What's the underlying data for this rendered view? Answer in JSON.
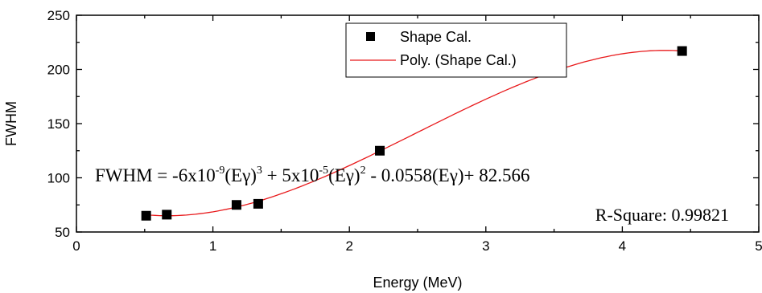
{
  "chart_data": {
    "type": "scatter",
    "xlabel": "Energy (MeV)",
    "ylabel": "FWHM",
    "xlim": [
      0,
      5
    ],
    "ylim": [
      50,
      250
    ],
    "x_ticks": [
      "0",
      "1",
      "2",
      "3",
      "4",
      "5"
    ],
    "y_ticks": [
      "50",
      "100",
      "150",
      "200",
      "250"
    ],
    "grid": false,
    "legend_position": "top-center",
    "series": [
      {
        "name": "Shape Cal.",
        "kind": "points",
        "marker": "square",
        "color": "#000000",
        "x": [
          0.511,
          0.662,
          1.173,
          1.332,
          2.223,
          4.438
        ],
        "y": [
          65,
          66,
          75,
          76,
          125,
          217
        ]
      },
      {
        "name": "Poly. (Shape Cal.)",
        "kind": "fit",
        "color": "#e8191b",
        "x_range": [
          0.511,
          4.438
        ]
      }
    ],
    "annotations": {
      "equation": {
        "lhs": "FWHM = -6x10",
        "exp1": "-9",
        "term1": "(Eγ)",
        "pow3": "3",
        "mid1": " + 5x10",
        "exp2": "-5",
        "term2": "(Eγ)",
        "pow2": "2",
        "tail": " - 0.0558(Eγ)+ 82.566"
      },
      "r_square": "R-Square: 0.99821"
    }
  }
}
